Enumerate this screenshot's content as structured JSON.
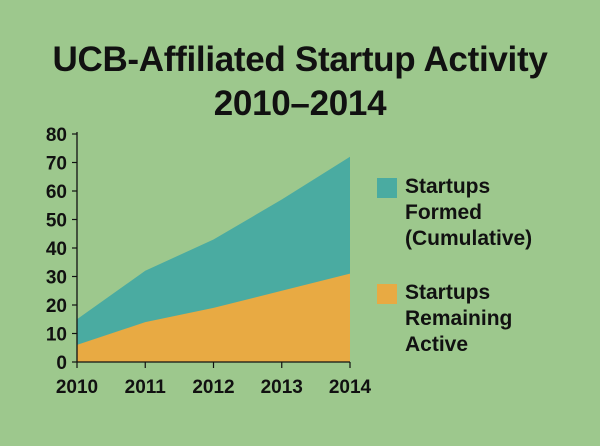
{
  "chart_data": {
    "type": "area",
    "title_lines": [
      "UCB-Affiliated Startup Activity",
      "2010–2014"
    ],
    "xlabel": "",
    "ylabel": "",
    "x": [
      "2010",
      "2011",
      "2012",
      "2013",
      "2014"
    ],
    "ylim": [
      0,
      80
    ],
    "yticks": [
      "0",
      "10",
      "20",
      "30",
      "40",
      "50",
      "60",
      "70",
      "80"
    ],
    "grid": false,
    "legend_position": "right",
    "series": [
      {
        "name": "Startups Formed (Cumulative)",
        "name_lines": [
          "Startups",
          "Formed",
          "(Cumulative)"
        ],
        "values": [
          15,
          32,
          43,
          57,
          72
        ],
        "color": "#4aaba1"
      },
      {
        "name": "Startups Remaining Active",
        "name_lines": [
          "Startups",
          "Remaining",
          "Active"
        ],
        "values": [
          6,
          14,
          19,
          25,
          31
        ],
        "color": "#e8aa43"
      }
    ]
  }
}
